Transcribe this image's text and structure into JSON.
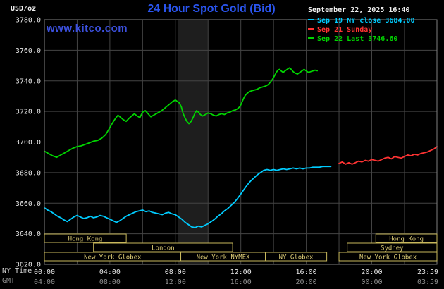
{
  "header": {
    "units_label": "USD/oz",
    "title": "24 Hour Spot Gold (Bid)",
    "datetime": "September 22, 2025 16:40",
    "watermark": "www.kitco.com"
  },
  "legend": {
    "items": [
      {
        "label": "Sep 19 NY close 3684.00",
        "color": "#00ccff"
      },
      {
        "label": "Sep 21 Sunday",
        "color": "#ff3333"
      },
      {
        "label": "Sep 22 Last 3746.60",
        "color": "#00d400"
      }
    ]
  },
  "axes": {
    "ny_time_label": "NY Time",
    "gmt_label": "GMT"
  },
  "colors": {
    "background": "#000000",
    "title_blue": "#2a55ef",
    "watermark_blue": "#3b50dd",
    "grid": "#444444",
    "frame": "#808080",
    "session_box": "#c8b85c",
    "session_text": "#dccb76",
    "tick_text": "#e6e6e6",
    "gmt_text": "#8f8f8f"
  },
  "chart_data": {
    "type": "line",
    "title": "24 Hour Spot Gold (Bid)",
    "ylabel": "USD/oz",
    "ylim": [
      3620,
      3780
    ],
    "y_ticks": [
      3620,
      3640,
      3660,
      3680,
      3700,
      3720,
      3740,
      3760,
      3780
    ],
    "x_range_minutes": [
      0,
      1439
    ],
    "x_ticks": [
      {
        "min": 0,
        "ny": "00:00",
        "gmt": "04:00"
      },
      {
        "min": 240,
        "ny": "04:00",
        "gmt": "08:00"
      },
      {
        "min": 480,
        "ny": "08:00",
        "gmt": "12:00"
      },
      {
        "min": 720,
        "ny": "12:00",
        "gmt": "16:00"
      },
      {
        "min": 960,
        "ny": "16:00",
        "gmt": "20:00"
      },
      {
        "min": 1200,
        "ny": "20:00",
        "gmt": "00:00"
      },
      {
        "min": 1439,
        "ny": "23:59",
        "gmt": "03:59"
      }
    ],
    "grid": {
      "color": "#444444",
      "v_step_min": 120
    },
    "band": {
      "start_min": 490,
      "end_min": 600,
      "color": "#1e1e1e"
    },
    "series": [
      {
        "name": "Sep 19 NY close",
        "close": 3684.0,
        "color": "#00ccff",
        "points": [
          [
            0,
            3657
          ],
          [
            12,
            3655.5
          ],
          [
            24,
            3654.5
          ],
          [
            36,
            3653
          ],
          [
            48,
            3651.5
          ],
          [
            60,
            3650.5
          ],
          [
            72,
            3649
          ],
          [
            84,
            3648
          ],
          [
            96,
            3649.5
          ],
          [
            108,
            3651
          ],
          [
            120,
            3652
          ],
          [
            132,
            3651
          ],
          [
            144,
            3650
          ],
          [
            156,
            3650.5
          ],
          [
            168,
            3651.5
          ],
          [
            180,
            3650.5
          ],
          [
            192,
            3651
          ],
          [
            204,
            3652
          ],
          [
            216,
            3651.5
          ],
          [
            228,
            3650.5
          ],
          [
            240,
            3649.5
          ],
          [
            252,
            3648.5
          ],
          [
            264,
            3647.5
          ],
          [
            276,
            3648.5
          ],
          [
            288,
            3650
          ],
          [
            300,
            3651.5
          ],
          [
            312,
            3652.5
          ],
          [
            324,
            3653.5
          ],
          [
            336,
            3654.5
          ],
          [
            348,
            3655
          ],
          [
            360,
            3655.5
          ],
          [
            372,
            3654.5
          ],
          [
            384,
            3655
          ],
          [
            396,
            3654
          ],
          [
            408,
            3653.5
          ],
          [
            420,
            3653
          ],
          [
            432,
            3652.5
          ],
          [
            444,
            3653.5
          ],
          [
            456,
            3654
          ],
          [
            468,
            3653
          ],
          [
            480,
            3652.5
          ],
          [
            492,
            3651
          ],
          [
            504,
            3649.5
          ],
          [
            516,
            3647.5
          ],
          [
            528,
            3646
          ],
          [
            540,
            3644.5
          ],
          [
            552,
            3644
          ],
          [
            564,
            3645
          ],
          [
            576,
            3644.5
          ],
          [
            588,
            3645.5
          ],
          [
            600,
            3646.5
          ],
          [
            612,
            3648
          ],
          [
            624,
            3649.5
          ],
          [
            636,
            3651.5
          ],
          [
            648,
            3653
          ],
          [
            660,
            3655
          ],
          [
            672,
            3656.5
          ],
          [
            684,
            3658.5
          ],
          [
            696,
            3660.5
          ],
          [
            708,
            3663
          ],
          [
            720,
            3666
          ],
          [
            732,
            3669
          ],
          [
            744,
            3672
          ],
          [
            756,
            3674.5
          ],
          [
            768,
            3676.5
          ],
          [
            780,
            3678.5
          ],
          [
            792,
            3680
          ],
          [
            804,
            3681.5
          ],
          [
            816,
            3682
          ],
          [
            828,
            3681.5
          ],
          [
            840,
            3682
          ],
          [
            852,
            3681.5
          ],
          [
            864,
            3682
          ],
          [
            876,
            3682.5
          ],
          [
            888,
            3682
          ],
          [
            900,
            3682.5
          ],
          [
            912,
            3683
          ],
          [
            924,
            3682.5
          ],
          [
            936,
            3683
          ],
          [
            948,
            3682.5
          ],
          [
            960,
            3683
          ],
          [
            972,
            3683
          ],
          [
            984,
            3683.5
          ],
          [
            996,
            3683.5
          ],
          [
            1008,
            3683.5
          ],
          [
            1020,
            3684
          ],
          [
            1035,
            3684
          ],
          [
            1050,
            3684
          ]
        ]
      },
      {
        "name": "Sep 21 Sunday",
        "color": "#ff3333",
        "points": [
          [
            1080,
            3686
          ],
          [
            1092,
            3687
          ],
          [
            1104,
            3685.5
          ],
          [
            1116,
            3686.5
          ],
          [
            1128,
            3685.5
          ],
          [
            1140,
            3686.5
          ],
          [
            1152,
            3687.5
          ],
          [
            1164,
            3687
          ],
          [
            1176,
            3688
          ],
          [
            1188,
            3687.5
          ],
          [
            1200,
            3688.5
          ],
          [
            1212,
            3688
          ],
          [
            1224,
            3687.5
          ],
          [
            1236,
            3688.5
          ],
          [
            1248,
            3689.5
          ],
          [
            1260,
            3690
          ],
          [
            1272,
            3689
          ],
          [
            1284,
            3690.5
          ],
          [
            1296,
            3690
          ],
          [
            1308,
            3689.5
          ],
          [
            1320,
            3690.5
          ],
          [
            1332,
            3691.5
          ],
          [
            1344,
            3691
          ],
          [
            1356,
            3692
          ],
          [
            1368,
            3691.5
          ],
          [
            1380,
            3692.5
          ],
          [
            1392,
            3693
          ],
          [
            1404,
            3693.5
          ],
          [
            1416,
            3694.5
          ],
          [
            1428,
            3695.5
          ],
          [
            1439,
            3697
          ]
        ]
      },
      {
        "name": "Sep 22 Last",
        "last": 3746.6,
        "color": "#00d400",
        "points": [
          [
            0,
            3694
          ],
          [
            15,
            3692.5
          ],
          [
            30,
            3691
          ],
          [
            45,
            3690
          ],
          [
            60,
            3691.5
          ],
          [
            75,
            3693
          ],
          [
            90,
            3694.5
          ],
          [
            105,
            3696
          ],
          [
            120,
            3697
          ],
          [
            135,
            3697.5
          ],
          [
            150,
            3698.5
          ],
          [
            165,
            3699.5
          ],
          [
            180,
            3700.5
          ],
          [
            195,
            3701
          ],
          [
            210,
            3702.5
          ],
          [
            225,
            3705
          ],
          [
            235,
            3708
          ],
          [
            245,
            3711
          ],
          [
            255,
            3714
          ],
          [
            265,
            3716.5
          ],
          [
            270,
            3717.5
          ],
          [
            280,
            3716
          ],
          [
            290,
            3714.5
          ],
          [
            300,
            3713.5
          ],
          [
            310,
            3715.5
          ],
          [
            320,
            3717
          ],
          [
            330,
            3718.5
          ],
          [
            340,
            3717
          ],
          [
            350,
            3716
          ],
          [
            360,
            3719.5
          ],
          [
            370,
            3720.5
          ],
          [
            380,
            3718.5
          ],
          [
            390,
            3716.5
          ],
          [
            400,
            3717.5
          ],
          [
            410,
            3718.5
          ],
          [
            420,
            3719.5
          ],
          [
            430,
            3720.5
          ],
          [
            440,
            3722
          ],
          [
            450,
            3723.5
          ],
          [
            460,
            3725
          ],
          [
            470,
            3726.5
          ],
          [
            480,
            3727.5
          ],
          [
            488,
            3726.5
          ],
          [
            495,
            3725.5
          ],
          [
            502,
            3723
          ],
          [
            508,
            3719
          ],
          [
            515,
            3716
          ],
          [
            522,
            3713.5
          ],
          [
            530,
            3712
          ],
          [
            538,
            3713.5
          ],
          [
            545,
            3716
          ],
          [
            552,
            3719
          ],
          [
            558,
            3720.5
          ],
          [
            565,
            3719.5
          ],
          [
            572,
            3718
          ],
          [
            580,
            3717
          ],
          [
            590,
            3718
          ],
          [
            600,
            3719
          ],
          [
            610,
            3718.5
          ],
          [
            620,
            3717.5
          ],
          [
            630,
            3717
          ],
          [
            640,
            3718
          ],
          [
            650,
            3718.5
          ],
          [
            660,
            3718
          ],
          [
            670,
            3719
          ],
          [
            680,
            3719.5
          ],
          [
            690,
            3720.5
          ],
          [
            700,
            3721
          ],
          [
            710,
            3722
          ],
          [
            718,
            3723.5
          ],
          [
            724,
            3726
          ],
          [
            730,
            3728.5
          ],
          [
            736,
            3730.5
          ],
          [
            744,
            3732
          ],
          [
            752,
            3733
          ],
          [
            760,
            3733.5
          ],
          [
            770,
            3734
          ],
          [
            780,
            3734.5
          ],
          [
            790,
            3735.5
          ],
          [
            800,
            3736
          ],
          [
            810,
            3736.5
          ],
          [
            820,
            3737.5
          ],
          [
            828,
            3739
          ],
          [
            836,
            3741
          ],
          [
            844,
            3743.5
          ],
          [
            850,
            3745.5
          ],
          [
            856,
            3747
          ],
          [
            862,
            3747.5
          ],
          [
            868,
            3746.5
          ],
          [
            875,
            3745.5
          ],
          [
            882,
            3746.5
          ],
          [
            890,
            3747.5
          ],
          [
            898,
            3748.5
          ],
          [
            905,
            3747.5
          ],
          [
            912,
            3746
          ],
          [
            920,
            3745
          ],
          [
            928,
            3744.5
          ],
          [
            936,
            3745.5
          ],
          [
            944,
            3746.5
          ],
          [
            952,
            3747.5
          ],
          [
            960,
            3746.5
          ],
          [
            968,
            3745.5
          ],
          [
            976,
            3746
          ],
          [
            984,
            3746.5
          ],
          [
            992,
            3747
          ],
          [
            1000,
            3746.6
          ]
        ]
      }
    ],
    "sessions": [
      {
        "row": 0,
        "label": "Hong Kong",
        "start_min": 0,
        "end_min": 300
      },
      {
        "row": 0,
        "label": "Hong Kong",
        "start_min": 1215,
        "end_min": 1439
      },
      {
        "row": 1,
        "label": "London",
        "start_min": 180,
        "end_min": 690
      },
      {
        "row": 1,
        "label": "Sydney",
        "start_min": 1110,
        "end_min": 1439
      },
      {
        "row": 2,
        "label": "New York Globex",
        "start_min": 0,
        "end_min": 500
      },
      {
        "row": 2,
        "label": "New York NYMEX",
        "start_min": 500,
        "end_min": 810
      },
      {
        "row": 2,
        "label": "NY Globex",
        "start_min": 810,
        "end_min": 1035
      },
      {
        "row": 2,
        "label": "New York Globex",
        "start_min": 1080,
        "end_min": 1439
      }
    ]
  }
}
